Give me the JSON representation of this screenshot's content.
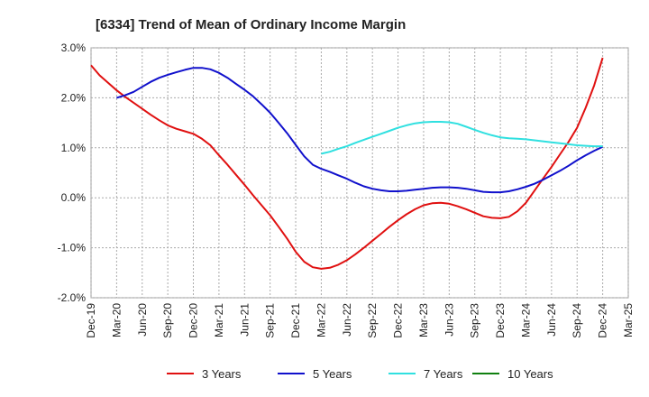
{
  "chart_data": {
    "type": "line",
    "title": "[6334]  Trend of Mean of Ordinary Income Margin",
    "xlabel": "",
    "ylabel": "",
    "ylim": [
      -2.0,
      3.0
    ],
    "yticks": [
      "3.0%",
      "2.0%",
      "1.0%",
      "0.0%",
      "-1.0%",
      "-2.0%"
    ],
    "ytick_values": [
      3.0,
      2.0,
      1.0,
      0.0,
      -1.0,
      -2.0
    ],
    "xticks": [
      "Dec-19",
      "Mar-20",
      "Jun-20",
      "Sep-20",
      "Dec-20",
      "Mar-21",
      "Jun-21",
      "Sep-21",
      "Dec-21",
      "Mar-22",
      "Jun-22",
      "Sep-22",
      "Dec-22",
      "Mar-23",
      "Jun-23",
      "Sep-23",
      "Dec-23",
      "Mar-24",
      "Jun-24",
      "Sep-24",
      "Dec-24",
      "Mar-25"
    ],
    "grid": true,
    "legend_position": "bottom",
    "series": [
      {
        "name": "3 Years",
        "color": "#e01010",
        "x": [
          "Dec-19",
          "Jan-20",
          "Feb-20",
          "Mar-20",
          "Apr-20",
          "May-20",
          "Jun-20",
          "Jul-20",
          "Aug-20",
          "Sep-20",
          "Oct-20",
          "Nov-20",
          "Dec-20",
          "Jan-21",
          "Feb-21",
          "Mar-21",
          "Apr-21",
          "May-21",
          "Jun-21",
          "Jul-21",
          "Aug-21",
          "Sep-21",
          "Oct-21",
          "Nov-21",
          "Dec-21",
          "Jan-22",
          "Feb-22",
          "Mar-22",
          "Apr-22",
          "May-22",
          "Jun-22",
          "Jul-22",
          "Aug-22",
          "Sep-22",
          "Oct-22",
          "Nov-22",
          "Dec-22",
          "Jan-23",
          "Feb-23",
          "Mar-23",
          "Apr-23",
          "May-23",
          "Jun-23",
          "Jul-23",
          "Aug-23",
          "Sep-23",
          "Oct-23",
          "Nov-23",
          "Dec-23",
          "Jan-24",
          "Feb-24",
          "Mar-24",
          "Apr-24",
          "May-24",
          "Jun-24",
          "Jul-24",
          "Aug-24",
          "Sep-24",
          "Oct-24",
          "Nov-24",
          "Dec-24"
        ],
        "values": [
          2.65,
          2.45,
          2.3,
          2.15,
          2.02,
          1.9,
          1.78,
          1.66,
          1.55,
          1.45,
          1.38,
          1.33,
          1.28,
          1.18,
          1.05,
          0.85,
          0.66,
          0.46,
          0.26,
          0.05,
          -0.15,
          -0.35,
          -0.58,
          -0.82,
          -1.08,
          -1.28,
          -1.39,
          -1.42,
          -1.4,
          -1.34,
          -1.25,
          -1.13,
          -1.0,
          -0.86,
          -0.72,
          -0.58,
          -0.45,
          -0.33,
          -0.23,
          -0.15,
          -0.11,
          -0.1,
          -0.12,
          -0.17,
          -0.23,
          -0.3,
          -0.37,
          -0.4,
          -0.41,
          -0.38,
          -0.27,
          -0.1,
          0.14,
          0.38,
          0.62,
          0.87,
          1.12,
          1.4,
          1.8,
          2.25,
          2.8
        ]
      },
      {
        "name": "5 Years",
        "color": "#1010cc",
        "x": [
          "Mar-20",
          "Apr-20",
          "May-20",
          "Jun-20",
          "Jul-20",
          "Aug-20",
          "Sep-20",
          "Oct-20",
          "Nov-20",
          "Dec-20",
          "Jan-21",
          "Feb-21",
          "Mar-21",
          "Apr-21",
          "May-21",
          "Jun-21",
          "Jul-21",
          "Aug-21",
          "Sep-21",
          "Oct-21",
          "Nov-21",
          "Dec-21",
          "Jan-22",
          "Feb-22",
          "Mar-22",
          "Apr-22",
          "May-22",
          "Jun-22",
          "Jul-22",
          "Aug-22",
          "Sep-22",
          "Oct-22",
          "Nov-22",
          "Dec-22",
          "Jan-23",
          "Feb-23",
          "Mar-23",
          "Apr-23",
          "May-23",
          "Jun-23",
          "Jul-23",
          "Aug-23",
          "Sep-23",
          "Oct-23",
          "Nov-23",
          "Dec-23",
          "Jan-24",
          "Feb-24",
          "Mar-24",
          "Apr-24",
          "May-24",
          "Jun-24",
          "Jul-24",
          "Aug-24",
          "Sep-24",
          "Oct-24",
          "Nov-24",
          "Dec-24"
        ],
        "values": [
          2.0,
          2.05,
          2.12,
          2.22,
          2.32,
          2.4,
          2.46,
          2.51,
          2.56,
          2.6,
          2.6,
          2.57,
          2.5,
          2.4,
          2.28,
          2.16,
          2.03,
          1.87,
          1.7,
          1.5,
          1.29,
          1.06,
          0.83,
          0.66,
          0.58,
          0.52,
          0.45,
          0.38,
          0.3,
          0.23,
          0.18,
          0.15,
          0.13,
          0.13,
          0.14,
          0.16,
          0.18,
          0.2,
          0.21,
          0.21,
          0.2,
          0.18,
          0.15,
          0.12,
          0.11,
          0.11,
          0.13,
          0.17,
          0.22,
          0.28,
          0.36,
          0.45,
          0.54,
          0.64,
          0.75,
          0.85,
          0.94,
          1.02
        ]
      },
      {
        "name": "7 Years",
        "color": "#30e0e0",
        "x": [
          "Mar-22",
          "Apr-22",
          "May-22",
          "Jun-22",
          "Jul-22",
          "Aug-22",
          "Sep-22",
          "Oct-22",
          "Nov-22",
          "Dec-22",
          "Jan-23",
          "Feb-23",
          "Mar-23",
          "Apr-23",
          "May-23",
          "Jun-23",
          "Jul-23",
          "Aug-23",
          "Sep-23",
          "Oct-23",
          "Nov-23",
          "Dec-23",
          "Jan-24",
          "Feb-24",
          "Mar-24",
          "Apr-24",
          "May-24",
          "Jun-24",
          "Jul-24",
          "Aug-24",
          "Sep-24",
          "Oct-24",
          "Nov-24",
          "Dec-24"
        ],
        "values": [
          0.88,
          0.92,
          0.98,
          1.03,
          1.1,
          1.16,
          1.22,
          1.28,
          1.34,
          1.4,
          1.45,
          1.49,
          1.51,
          1.52,
          1.52,
          1.51,
          1.48,
          1.42,
          1.36,
          1.3,
          1.25,
          1.21,
          1.19,
          1.18,
          1.17,
          1.15,
          1.13,
          1.11,
          1.09,
          1.07,
          1.05,
          1.04,
          1.03,
          1.03
        ]
      },
      {
        "name": "10 Years",
        "color": "#108010",
        "x": [],
        "values": []
      }
    ]
  }
}
